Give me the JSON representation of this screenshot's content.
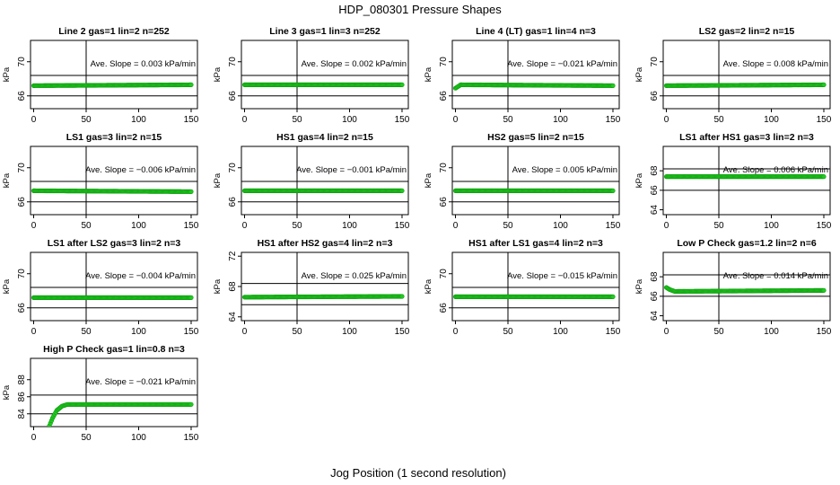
{
  "main_title": "HDP_080301  Pressure Shapes",
  "x_label": "Jog Position (1 second resolution)",
  "series_color": "#22c922",
  "series_edge_color": "#0e9e0e",
  "chart_data": [
    {
      "type": "scatter",
      "title": "Line 2 gas=1 lin=2 n=252",
      "ylabel": "kPa",
      "xlim": [
        -3,
        156
      ],
      "ylim": [
        64.5,
        72.5
      ],
      "yticks": [
        66,
        70
      ],
      "xticks": [
        0,
        50,
        100,
        150
      ],
      "hlines": [
        66.0,
        68.4
      ],
      "vline": 50,
      "slope_label": "Ave. Slope =",
      "slope_value": "0.003",
      "slope_unit": "kPa/min",
      "x": [
        0,
        150
      ],
      "y": [
        67.2,
        67.3
      ]
    },
    {
      "type": "scatter",
      "title": "Line 3 gas=1 lin=3 n=252",
      "ylabel": "kPa",
      "xlim": [
        -3,
        156
      ],
      "ylim": [
        64.5,
        72.5
      ],
      "yticks": [
        66,
        70
      ],
      "xticks": [
        0,
        50,
        100,
        150
      ],
      "hlines": [
        66.0,
        68.4
      ],
      "vline": 50,
      "slope_label": "Ave. Slope =",
      "slope_value": "0.002",
      "slope_unit": "kPa/min",
      "x": [
        0,
        150
      ],
      "y": [
        67.3,
        67.3
      ]
    },
    {
      "type": "scatter",
      "title": "Line 4 (LT) gas=1 lin=4 n=3",
      "ylabel": "kPa",
      "xlim": [
        -3,
        156
      ],
      "ylim": [
        64.5,
        72.5
      ],
      "yticks": [
        66,
        70
      ],
      "xticks": [
        0,
        50,
        100,
        150
      ],
      "hlines": [
        66.0,
        68.4
      ],
      "vline": 50,
      "slope_label": "Ave. Slope =",
      "slope_value": "−0.021",
      "slope_unit": "kPa/min",
      "x": [
        0,
        5,
        150
      ],
      "y": [
        66.9,
        67.3,
        67.2
      ]
    },
    {
      "type": "scatter",
      "title": "LS2 gas=2 lin=2 n=15",
      "ylabel": "kPa",
      "xlim": [
        -3,
        156
      ],
      "ylim": [
        64.5,
        72.5
      ],
      "yticks": [
        66,
        70
      ],
      "xticks": [
        0,
        50,
        100,
        150
      ],
      "hlines": [
        66.0,
        68.4
      ],
      "vline": 50,
      "slope_label": "Ave. Slope =",
      "slope_value": "0.008",
      "slope_unit": "kPa/min",
      "x": [
        0,
        150
      ],
      "y": [
        67.2,
        67.3
      ]
    },
    {
      "type": "scatter",
      "title": "LS1 gas=3 lin=2 n=15",
      "ylabel": "kPa",
      "xlim": [
        -3,
        156
      ],
      "ylim": [
        64.5,
        72.5
      ],
      "yticks": [
        66,
        70
      ],
      "xticks": [
        0,
        50,
        100,
        150
      ],
      "hlines": [
        66.0,
        68.4
      ],
      "vline": 50,
      "slope_label": "Ave. Slope =",
      "slope_value": "−0.006",
      "slope_unit": "kPa/min",
      "x": [
        0,
        150
      ],
      "y": [
        67.3,
        67.2
      ]
    },
    {
      "type": "scatter",
      "title": "HS1 gas=4 lin=2 n=15",
      "ylabel": "kPa",
      "xlim": [
        -3,
        156
      ],
      "ylim": [
        64.5,
        72.5
      ],
      "yticks": [
        66,
        70
      ],
      "xticks": [
        0,
        50,
        100,
        150
      ],
      "hlines": [
        66.0,
        68.4
      ],
      "vline": 50,
      "slope_label": "Ave. Slope =",
      "slope_value": "−0.001",
      "slope_unit": "kPa/min",
      "x": [
        0,
        150
      ],
      "y": [
        67.3,
        67.3
      ]
    },
    {
      "type": "scatter",
      "title": "HS2 gas=5 lin=2 n=15",
      "ylabel": "kPa",
      "xlim": [
        -3,
        156
      ],
      "ylim": [
        64.5,
        72.5
      ],
      "yticks": [
        66,
        70
      ],
      "xticks": [
        0,
        50,
        100,
        150
      ],
      "hlines": [
        66.0,
        68.4
      ],
      "vline": 50,
      "slope_label": "Ave. Slope =",
      "slope_value": "0.005",
      "slope_unit": "kPa/min",
      "x": [
        0,
        150
      ],
      "y": [
        67.3,
        67.3
      ]
    },
    {
      "type": "scatter",
      "title": "LS1 after HS1 gas=3 lin=2 n=3",
      "ylabel": "kPa",
      "xlim": [
        -3,
        156
      ],
      "ylim": [
        63.5,
        70.5
      ],
      "yticks": [
        64,
        66,
        68
      ],
      "xticks": [
        0,
        50,
        100,
        150
      ],
      "hlines": [
        66.0,
        68.2
      ],
      "vline": 50,
      "slope_label": "Ave. Slope =",
      "slope_value": "0.006",
      "slope_unit": "kPa/min",
      "x": [
        0,
        150
      ],
      "y": [
        67.4,
        67.4
      ]
    },
    {
      "type": "scatter",
      "title": "LS1 after LS2 gas=3 lin=2 n=3",
      "ylabel": "kPa",
      "xlim": [
        -3,
        156
      ],
      "ylim": [
        64.5,
        72.5
      ],
      "yticks": [
        66,
        70
      ],
      "xticks": [
        0,
        50,
        100,
        150
      ],
      "hlines": [
        66.0,
        68.4
      ],
      "vline": 50,
      "slope_label": "Ave. Slope =",
      "slope_value": "−0.004",
      "slope_unit": "kPa/min",
      "x": [
        0,
        150
      ],
      "y": [
        67.2,
        67.2
      ]
    },
    {
      "type": "scatter",
      "title": "HS1 after HS2 gas=4 lin=2 n=3",
      "ylabel": "kPa",
      "xlim": [
        -3,
        156
      ],
      "ylim": [
        63.5,
        72.5
      ],
      "yticks": [
        64,
        68,
        72
      ],
      "xticks": [
        0,
        50,
        100,
        150
      ],
      "hlines": [
        65.6,
        68.4
      ],
      "vline": 50,
      "slope_label": "Ave. Slope =",
      "slope_value": "0.025",
      "slope_unit": "kPa/min",
      "x": [
        0,
        150
      ],
      "y": [
        66.6,
        66.7
      ]
    },
    {
      "type": "scatter",
      "title": "HS1 after LS1 gas=4 lin=2 n=3",
      "ylabel": "kPa",
      "xlim": [
        -3,
        156
      ],
      "ylim": [
        64.5,
        72.5
      ],
      "yticks": [
        66,
        70
      ],
      "xticks": [
        0,
        50,
        100,
        150
      ],
      "hlines": [
        66.0,
        68.4
      ],
      "vline": 50,
      "slope_label": "Ave. Slope =",
      "slope_value": "−0.015",
      "slope_unit": "kPa/min",
      "x": [
        0,
        150
      ],
      "y": [
        67.3,
        67.3
      ]
    },
    {
      "type": "scatter",
      "title": "Low P Check gas=1.2 lin=2 n=6",
      "ylabel": "kPa",
      "xlim": [
        -3,
        156
      ],
      "ylim": [
        63.5,
        70.5
      ],
      "yticks": [
        64,
        66,
        68
      ],
      "xticks": [
        0,
        50,
        100,
        150
      ],
      "hlines": [
        66.0,
        68.2
      ],
      "vline": 50,
      "slope_label": "Ave. Slope =",
      "slope_value": "0.014",
      "slope_unit": "kPa/min",
      "x": [
        0,
        3,
        8,
        150
      ],
      "y": [
        66.9,
        66.7,
        66.5,
        66.6
      ]
    },
    {
      "type": "scatter",
      "title": "High P Check gas=1 lin=0.8 n=3",
      "ylabel": "kPa",
      "xlim": [
        -3,
        156
      ],
      "ylim": [
        82.5,
        90.5
      ],
      "yticks": [
        84,
        86,
        88
      ],
      "xticks": [
        0,
        50,
        100,
        150
      ],
      "hlines": [
        84.0,
        86.2
      ],
      "vline": 50,
      "slope_label": "Ave. Slope =",
      "slope_value": "−0.021",
      "slope_unit": "kPa/min",
      "x": [
        15,
        18,
        22,
        27,
        32,
        38,
        150
      ],
      "y": [
        82.6,
        83.5,
        84.4,
        84.9,
        85.1,
        85.1,
        85.1
      ]
    }
  ]
}
